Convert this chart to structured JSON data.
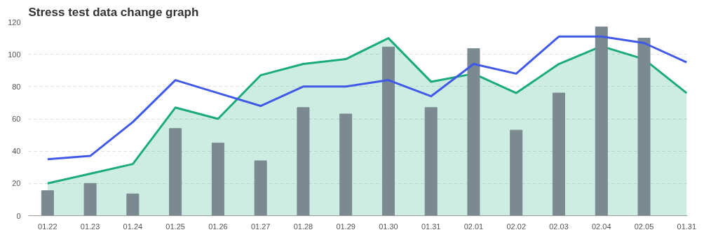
{
  "chart_data": {
    "type": "bar",
    "title": "Stress test data change graph",
    "categories": [
      "01.22",
      "01.23",
      "01.24",
      "01.25",
      "01.26",
      "01.27",
      "01.28",
      "01.29",
      "01.30",
      "01.31",
      "02.01",
      "02.02",
      "02.03",
      "02.04",
      "02.05",
      "01.31"
    ],
    "ylim": [
      0,
      120
    ],
    "yticks": [
      0,
      20,
      40,
      60,
      80,
      100,
      120
    ],
    "grid": "y",
    "series": [
      {
        "color": "#7a8a90",
        "values": [
          15.5,
          20,
          13.5,
          54,
          45,
          34,
          67,
          63,
          104.5,
          67,
          103.5,
          53,
          76,
          117,
          110,
          null
        ]
      },
      {
        "type": "area",
        "color": "#1aab7c",
        "values": [
          20,
          26,
          32,
          67,
          60,
          87,
          94,
          97,
          110,
          83,
          88,
          76,
          94,
          105,
          97,
          76
        ]
      },
      {
        "type": "line",
        "color": "#4159e8",
        "values": [
          35,
          37,
          58,
          84,
          76,
          68,
          80,
          80,
          84,
          74,
          94,
          88,
          111,
          111,
          107,
          95
        ]
      }
    ]
  }
}
